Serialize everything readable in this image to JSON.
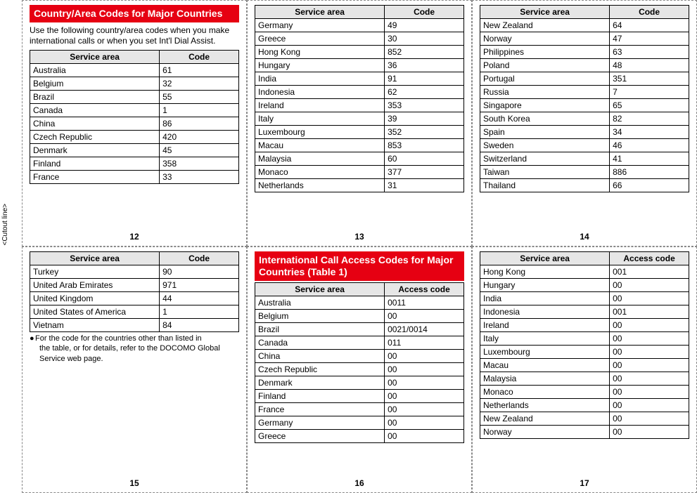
{
  "cutout_label": "<Cutout line>",
  "table_headers": {
    "service_area": "Service area",
    "code": "Code",
    "access_code": "Access code"
  },
  "panels": [
    {
      "title": "Country/Area Codes for Major Countries",
      "intro": "Use the following country/area codes when you make international calls or when you set Int'l Dial Assist.",
      "col2": "code",
      "rows": [
        [
          "Australia",
          "61"
        ],
        [
          "Belgium",
          "32"
        ],
        [
          "Brazil",
          "55"
        ],
        [
          "Canada",
          "1"
        ],
        [
          "China",
          "86"
        ],
        [
          "Czech Republic",
          "420"
        ],
        [
          "Denmark",
          "45"
        ],
        [
          "Finland",
          "358"
        ],
        [
          "France",
          "33"
        ]
      ],
      "page": "12"
    },
    {
      "col2": "code",
      "rows": [
        [
          "Germany",
          "49"
        ],
        [
          "Greece",
          "30"
        ],
        [
          "Hong Kong",
          "852"
        ],
        [
          "Hungary",
          "36"
        ],
        [
          "India",
          "91"
        ],
        [
          "Indonesia",
          "62"
        ],
        [
          "Ireland",
          "353"
        ],
        [
          "Italy",
          "39"
        ],
        [
          "Luxembourg",
          "352"
        ],
        [
          "Macau",
          "853"
        ],
        [
          "Malaysia",
          "60"
        ],
        [
          "Monaco",
          "377"
        ],
        [
          "Netherlands",
          "31"
        ]
      ],
      "page": "13"
    },
    {
      "col2": "code",
      "rows": [
        [
          "New Zealand",
          "64"
        ],
        [
          "Norway",
          "47"
        ],
        [
          "Philippines",
          "63"
        ],
        [
          "Poland",
          "48"
        ],
        [
          "Portugal",
          "351"
        ],
        [
          "Russia",
          "7"
        ],
        [
          "Singapore",
          "65"
        ],
        [
          "South Korea",
          "82"
        ],
        [
          "Spain",
          "34"
        ],
        [
          "Sweden",
          "46"
        ],
        [
          "Switzerland",
          "41"
        ],
        [
          "Taiwan",
          "886"
        ],
        [
          "Thailand",
          "66"
        ]
      ],
      "page": "14"
    },
    {
      "col2": "code",
      "rows": [
        [
          "Turkey",
          "90"
        ],
        [
          "United Arab Emirates",
          "971"
        ],
        [
          "United Kingdom",
          "44"
        ],
        [
          "United States of America",
          "1"
        ],
        [
          "Vietnam",
          "84"
        ]
      ],
      "note_line1": "For the code for the countries other than listed in",
      "note_line2": "the table, or for details, refer to the DOCOMO Global Service web page.",
      "page": "15"
    },
    {
      "title": "International Call Access Codes for Major Countries (Table 1)",
      "col2": "access_code",
      "rows": [
        [
          "Australia",
          "0011"
        ],
        [
          "Belgium",
          "00"
        ],
        [
          "Brazil",
          "0021/0014"
        ],
        [
          "Canada",
          "011"
        ],
        [
          "China",
          "00"
        ],
        [
          "Czech Republic",
          "00"
        ],
        [
          "Denmark",
          "00"
        ],
        [
          "Finland",
          "00"
        ],
        [
          "France",
          "00"
        ],
        [
          "Germany",
          "00"
        ],
        [
          "Greece",
          "00"
        ]
      ],
      "page": "16"
    },
    {
      "col2": "access_code",
      "rows": [
        [
          "Hong Kong",
          "001"
        ],
        [
          "Hungary",
          "00"
        ],
        [
          "India",
          "00"
        ],
        [
          "Indonesia",
          "001"
        ],
        [
          "Ireland",
          "00"
        ],
        [
          "Italy",
          "00"
        ],
        [
          "Luxembourg",
          "00"
        ],
        [
          "Macau",
          "00"
        ],
        [
          "Malaysia",
          "00"
        ],
        [
          "Monaco",
          "00"
        ],
        [
          "Netherlands",
          "00"
        ],
        [
          "New Zealand",
          "00"
        ],
        [
          "Norway",
          "00"
        ]
      ],
      "page": "17"
    }
  ],
  "col_widths": {
    "col1_pct": 62,
    "col2_pct": 38
  },
  "colors": {
    "title_bg": "#e60012",
    "title_fg": "#ffffff",
    "header_bg": "#e6e6e6",
    "border": "#000000",
    "dash": "#888888"
  }
}
